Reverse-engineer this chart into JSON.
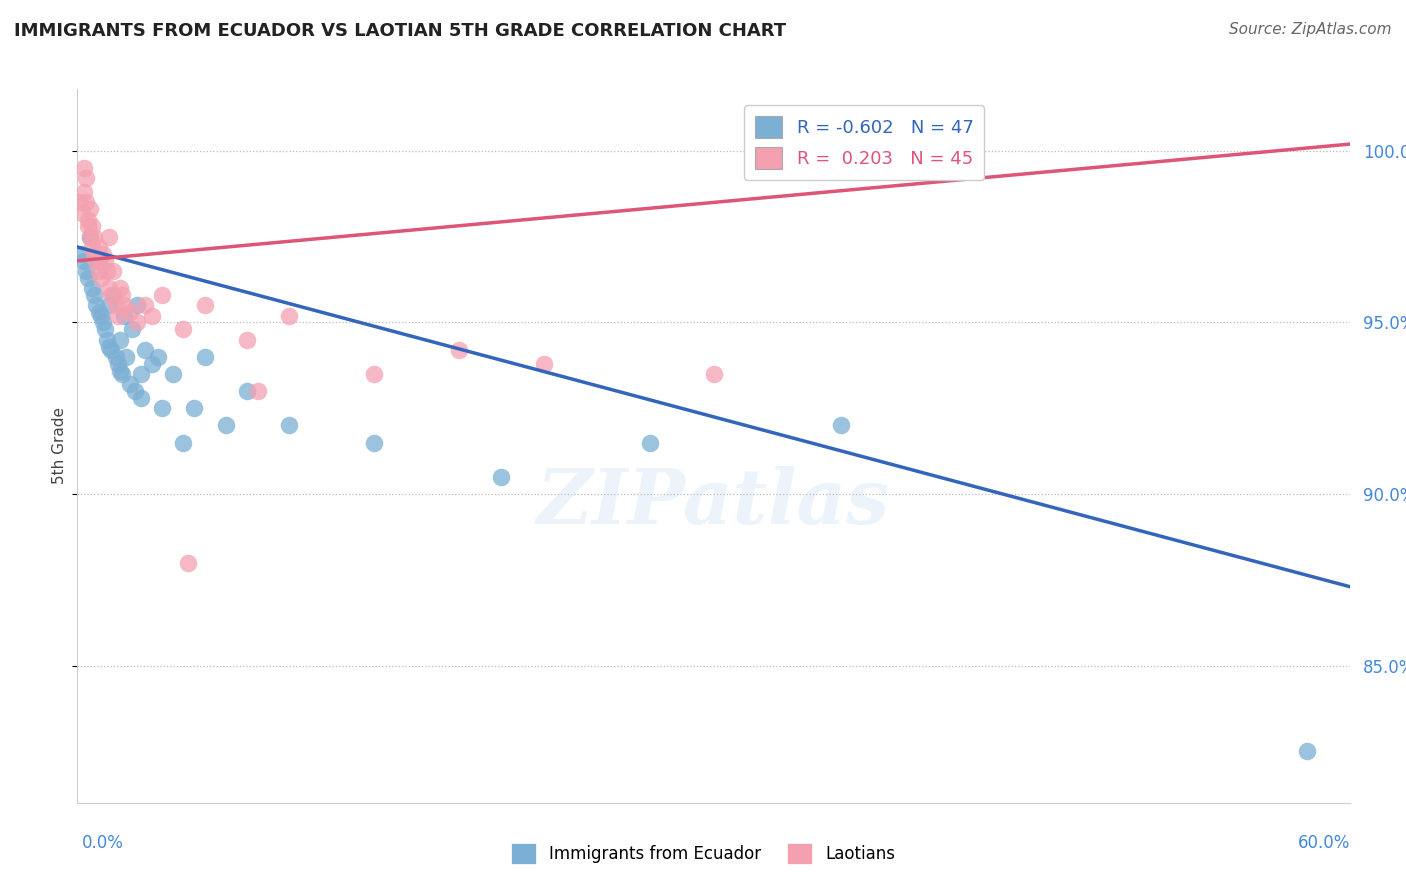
{
  "title": "IMMIGRANTS FROM ECUADOR VS LAOTIAN 5TH GRADE CORRELATION CHART",
  "source": "Source: ZipAtlas.com",
  "ylabel": "5th Grade",
  "xlim": [
    0.0,
    60.0
  ],
  "ylim": [
    81.0,
    101.8
  ],
  "yticks": [
    85.0,
    90.0,
    95.0,
    100.0
  ],
  "ytick_labels": [
    "85.0%",
    "90.0%",
    "95.0%",
    "100.0%"
  ],
  "blue_color": "#7BAFD4",
  "pink_color": "#F4A0B0",
  "blue_line_color": "#3366BB",
  "pink_line_color": "#DD5577",
  "legend_r_blue": "-0.602",
  "legend_n_blue": "47",
  "legend_r_pink": "0.203",
  "legend_n_pink": "45",
  "watermark": "ZIPatlas",
  "blue_trend_x0": 0.0,
  "blue_trend_y0": 97.2,
  "blue_trend_x1": 60.0,
  "blue_trend_y1": 87.3,
  "pink_trend_x0": 0.0,
  "pink_trend_y0": 96.8,
  "pink_trend_x1": 60.0,
  "pink_trend_y1": 100.2,
  "blue_x": [
    0.2,
    0.3,
    0.4,
    0.5,
    0.6,
    0.7,
    0.8,
    0.9,
    1.0,
    1.0,
    1.1,
    1.2,
    1.3,
    1.4,
    1.5,
    1.5,
    1.6,
    1.7,
    1.8,
    1.9,
    2.0,
    2.0,
    2.1,
    2.2,
    2.3,
    2.5,
    2.6,
    2.7,
    2.8,
    3.0,
    3.0,
    3.2,
    3.5,
    3.8,
    4.0,
    4.5,
    5.0,
    5.5,
    6.0,
    7.0,
    8.0,
    10.0,
    14.0,
    20.0,
    27.0,
    36.0,
    58.0
  ],
  "blue_y": [
    97.0,
    96.8,
    96.5,
    96.3,
    97.5,
    96.0,
    95.8,
    95.5,
    95.3,
    96.8,
    95.2,
    95.0,
    94.8,
    94.5,
    95.5,
    94.3,
    94.2,
    95.8,
    94.0,
    93.8,
    93.6,
    94.5,
    93.5,
    95.2,
    94.0,
    93.2,
    94.8,
    93.0,
    95.5,
    93.5,
    92.8,
    94.2,
    93.8,
    94.0,
    92.5,
    93.5,
    91.5,
    92.5,
    94.0,
    92.0,
    93.0,
    92.0,
    91.5,
    90.5,
    91.5,
    92.0,
    82.5
  ],
  "pink_x": [
    0.1,
    0.2,
    0.3,
    0.3,
    0.4,
    0.4,
    0.5,
    0.5,
    0.6,
    0.6,
    0.7,
    0.7,
    0.8,
    0.8,
    0.9,
    1.0,
    1.0,
    1.1,
    1.2,
    1.3,
    1.4,
    1.5,
    1.5,
    1.6,
    1.7,
    1.8,
    1.9,
    2.0,
    2.1,
    2.2,
    2.5,
    2.8,
    3.2,
    3.5,
    4.0,
    5.0,
    6.0,
    8.0,
    10.0,
    14.0,
    18.0,
    22.0,
    30.0,
    5.2,
    8.5
  ],
  "pink_y": [
    98.5,
    98.2,
    98.8,
    99.5,
    98.5,
    99.2,
    98.0,
    97.8,
    97.5,
    98.3,
    97.2,
    97.8,
    97.0,
    97.5,
    96.8,
    96.5,
    97.2,
    96.3,
    97.0,
    96.8,
    96.5,
    97.5,
    96.0,
    95.8,
    96.5,
    95.5,
    95.2,
    96.0,
    95.8,
    95.5,
    95.3,
    95.0,
    95.5,
    95.2,
    95.8,
    94.8,
    95.5,
    94.5,
    95.2,
    93.5,
    94.2,
    93.8,
    93.5,
    88.0,
    93.0
  ]
}
